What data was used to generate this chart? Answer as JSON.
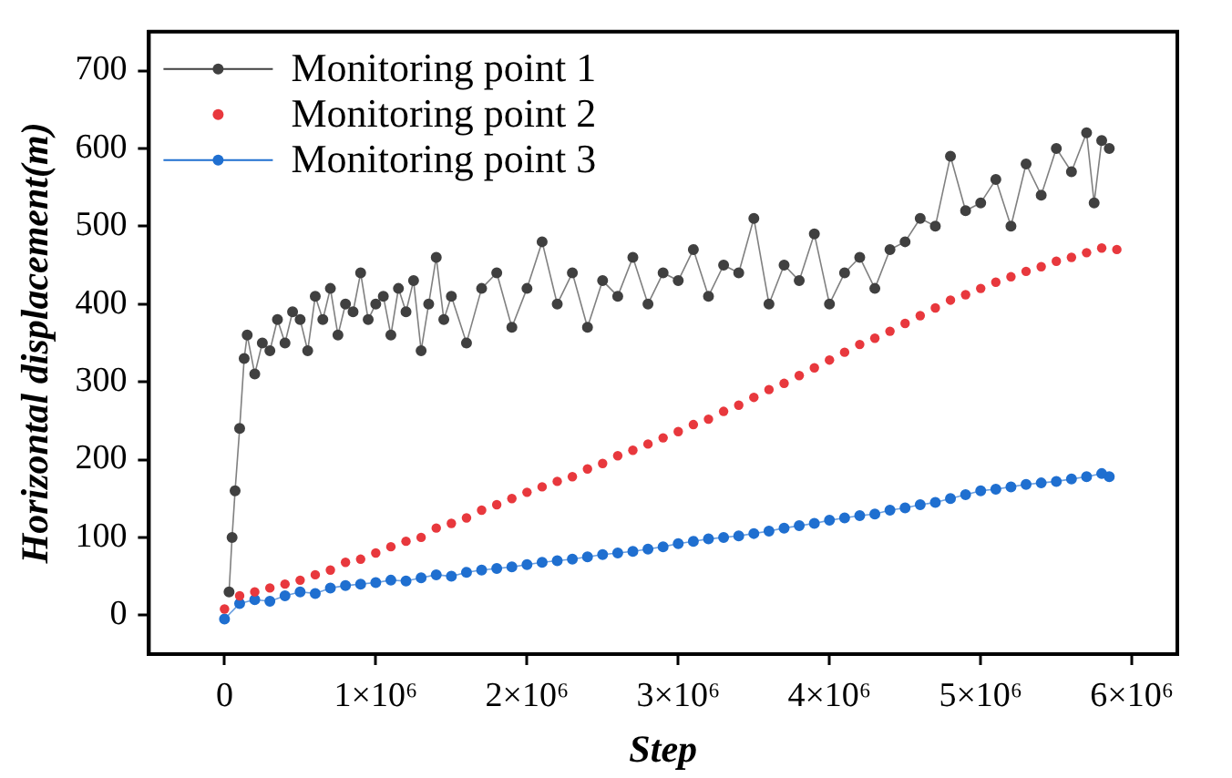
{
  "chart_data": {
    "type": "line",
    "xlabel": "Step",
    "ylabel": "Horizontal displacement(m)",
    "xlim": [
      -500000,
      6300000
    ],
    "ylim": [
      -50,
      750
    ],
    "xticks": [
      0,
      {
        "value": 1000000,
        "label": "1×10⁶"
      },
      {
        "value": 2000000,
        "label": "2×10⁶"
      },
      {
        "value": 3000000,
        "label": "3×10⁶"
      },
      {
        "value": 4000000,
        "label": "4×10⁶"
      },
      {
        "value": 5000000,
        "label": "5×10⁶"
      },
      {
        "value": 6000000,
        "label": "6×10⁶"
      }
    ],
    "yticks": [
      0,
      100,
      200,
      300,
      400,
      500,
      600,
      700
    ],
    "grid": false,
    "legend": "top left",
    "marker": "circle",
    "series": [
      {
        "name": "Monitoring point 1",
        "type": "line",
        "color": "#404040",
        "x": [
          30000,
          50000,
          70000,
          100000,
          130000,
          150000,
          200000,
          250000,
          300000,
          350000,
          400000,
          450000,
          500000,
          550000,
          600000,
          650000,
          700000,
          750000,
          800000,
          850000,
          900000,
          950000,
          1000000,
          1050000,
          1100000,
          1150000,
          1200000,
          1250000,
          1300000,
          1350000,
          1400000,
          1450000,
          1500000,
          1600000,
          1700000,
          1800000,
          1900000,
          2000000,
          2100000,
          2200000,
          2300000,
          2400000,
          2500000,
          2600000,
          2700000,
          2800000,
          2900000,
          3000000,
          3100000,
          3200000,
          3300000,
          3400000,
          3500000,
          3600000,
          3700000,
          3800000,
          3900000,
          4000000,
          4100000,
          4200000,
          4300000,
          4400000,
          4500000,
          4600000,
          4700000,
          4800000,
          4900000,
          5000000,
          5100000,
          5200000,
          5300000,
          5400000,
          5500000,
          5600000,
          5700000,
          5750000,
          5800000,
          5850000
        ],
        "values": [
          30,
          100,
          160,
          240,
          330,
          360,
          310,
          350,
          340,
          380,
          350,
          390,
          380,
          340,
          410,
          380,
          420,
          360,
          400,
          390,
          440,
          380,
          400,
          410,
          360,
          420,
          390,
          430,
          340,
          400,
          460,
          380,
          410,
          350,
          420,
          440,
          370,
          420,
          480,
          400,
          440,
          370,
          430,
          410,
          460,
          400,
          440,
          430,
          470,
          410,
          450,
          440,
          510,
          400,
          450,
          430,
          490,
          400,
          440,
          460,
          420,
          470,
          480,
          510,
          500,
          590,
          520,
          530,
          560,
          500,
          580,
          540,
          600,
          570,
          620,
          530,
          610,
          600
        ]
      },
      {
        "name": "Monitoring point 2",
        "type": "scatter",
        "color": "#e8383d",
        "x": [
          0,
          100000,
          200000,
          300000,
          400000,
          500000,
          600000,
          700000,
          800000,
          900000,
          1000000,
          1100000,
          1200000,
          1300000,
          1400000,
          1500000,
          1600000,
          1700000,
          1800000,
          1900000,
          2000000,
          2100000,
          2200000,
          2300000,
          2400000,
          2500000,
          2600000,
          2700000,
          2800000,
          2900000,
          3000000,
          3100000,
          3200000,
          3300000,
          3400000,
          3500000,
          3600000,
          3700000,
          3800000,
          3900000,
          4000000,
          4100000,
          4200000,
          4300000,
          4400000,
          4500000,
          4600000,
          4700000,
          4800000,
          4900000,
          5000000,
          5100000,
          5200000,
          5300000,
          5400000,
          5500000,
          5600000,
          5700000,
          5800000,
          5900000
        ],
        "values": [
          8,
          25,
          30,
          35,
          40,
          45,
          52,
          58,
          68,
          72,
          80,
          88,
          95,
          100,
          112,
          118,
          125,
          135,
          142,
          150,
          158,
          165,
          172,
          178,
          188,
          195,
          205,
          212,
          220,
          228,
          236,
          245,
          252,
          262,
          270,
          280,
          290,
          298,
          308,
          318,
          328,
          338,
          348,
          356,
          365,
          375,
          385,
          395,
          405,
          412,
          420,
          428,
          435,
          442,
          448,
          455,
          460,
          466,
          472,
          470
        ]
      },
      {
        "name": "Monitoring point 3",
        "type": "line",
        "color": "#1f6fd0",
        "x": [
          0,
          100000,
          200000,
          300000,
          400000,
          500000,
          600000,
          700000,
          800000,
          900000,
          1000000,
          1100000,
          1200000,
          1300000,
          1400000,
          1500000,
          1600000,
          1700000,
          1800000,
          1900000,
          2000000,
          2100000,
          2200000,
          2300000,
          2400000,
          2500000,
          2600000,
          2700000,
          2800000,
          2900000,
          3000000,
          3100000,
          3200000,
          3300000,
          3400000,
          3500000,
          3600000,
          3700000,
          3800000,
          3900000,
          4000000,
          4100000,
          4200000,
          4300000,
          4400000,
          4500000,
          4600000,
          4700000,
          4800000,
          4900000,
          5000000,
          5100000,
          5200000,
          5300000,
          5400000,
          5500000,
          5600000,
          5700000,
          5800000,
          5850000
        ],
        "values": [
          -5,
          15,
          20,
          18,
          25,
          30,
          28,
          35,
          38,
          40,
          42,
          45,
          44,
          48,
          52,
          50,
          55,
          58,
          60,
          62,
          65,
          68,
          70,
          72,
          75,
          78,
          80,
          82,
          85,
          88,
          92,
          95,
          98,
          100,
          102,
          105,
          108,
          112,
          115,
          118,
          122,
          125,
          128,
          130,
          135,
          138,
          142,
          145,
          150,
          155,
          160,
          162,
          165,
          168,
          170,
          172,
          175,
          178,
          182,
          178
        ]
      }
    ]
  }
}
